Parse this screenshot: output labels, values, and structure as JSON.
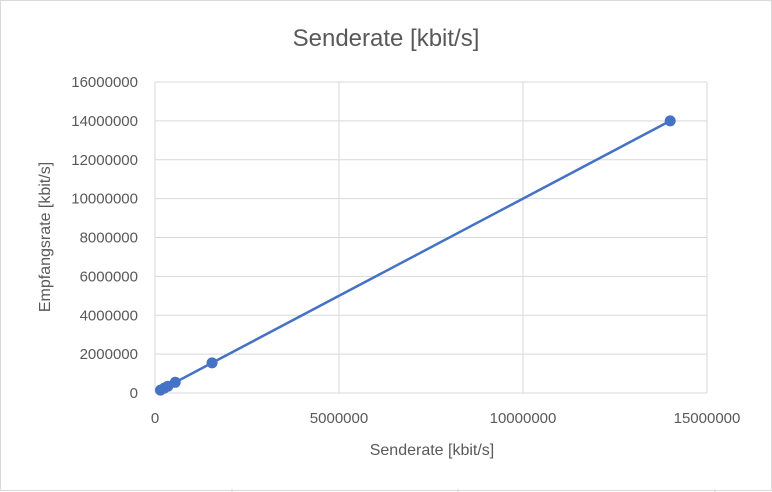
{
  "chart_data": {
    "type": "scatter",
    "title": "Senderate [kbit/s]",
    "xlabel": "Senderate [kbit/s]",
    "ylabel": "Empfangsrate [kbit/s]",
    "xlim": [
      0,
      15000000
    ],
    "ylim": [
      0,
      16000000
    ],
    "x_ticks": [
      0,
      5000000,
      10000000,
      15000000
    ],
    "y_ticks": [
      0,
      2000000,
      4000000,
      6000000,
      8000000,
      10000000,
      12000000,
      14000000,
      16000000
    ],
    "x_tick_labels": [
      "0",
      "5000000",
      "10000000",
      "15000000"
    ],
    "y_tick_labels": [
      "0",
      "2000000",
      "4000000",
      "6000000",
      "8000000",
      "10000000",
      "12000000",
      "14000000",
      "16000000"
    ],
    "grid": true,
    "legend": "none",
    "series": [
      {
        "x": [
          150000,
          250000,
          350000,
          550000,
          1550000,
          14000000
        ],
        "y": [
          150000,
          250000,
          350000,
          550000,
          1550000,
          14000000
        ],
        "color": "#4472c4",
        "connect": true,
        "markers": true
      }
    ]
  },
  "colors": {
    "series": "#4472c4",
    "grid": "#d9d9d9",
    "text": "#595959"
  }
}
